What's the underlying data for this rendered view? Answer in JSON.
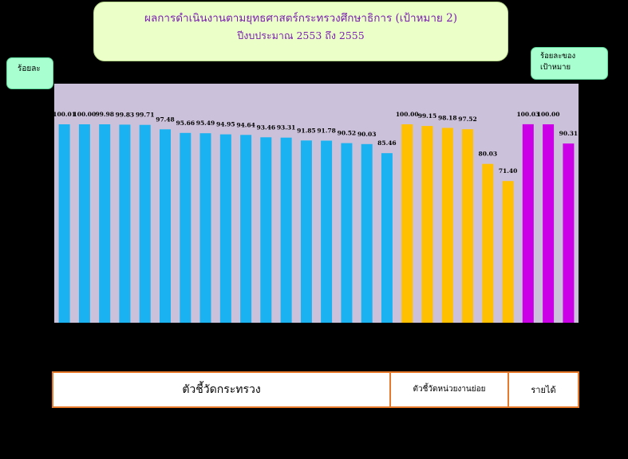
{
  "title": {
    "line1": "ผลการดำเนินงานตามยุทธศาสตร์กระทรวงศึกษาธิการ (เป้าหมาย 2)",
    "line2": "ปีงบประมาณ 2553 ถึง 2555"
  },
  "unit_label": "ร้อยละ",
  "legend_label": "ร้อยละของ\nเป้าหมาย",
  "bottom_table": {
    "cell1": "ตัวชี้วัดกระทรวง",
    "cell2": "ตัวชี้วัดหน่วยงานย่อย",
    "cell3": "รายได้"
  },
  "chart_data": {
    "type": "bar",
    "title": "",
    "ylim": [
      0,
      100
    ],
    "grid": false,
    "values": [
      100.01,
      100.0,
      99.98,
      99.83,
      99.71,
      97.48,
      95.66,
      95.49,
      94.95,
      94.64,
      93.46,
      93.31,
      91.85,
      91.78,
      90.52,
      90.03,
      85.46,
      100.0,
      99.15,
      98.18,
      97.52,
      80.03,
      71.4,
      100.03,
      100.0,
      90.31
    ],
    "data_labels": [
      "100.01",
      "100.00",
      "99.98",
      "99.83",
      "99.71",
      "97.48",
      "95.66",
      "95.49",
      "94.95",
      "94.64",
      "93.46",
      "93.31",
      "91.85",
      "91.78",
      "90.52",
      "90.03",
      "85.46",
      "100.00",
      "99.15",
      "98.18",
      "97.52",
      "80.03",
      "71.40",
      "100.03",
      "100.00",
      "90.31"
    ],
    "groups": [
      {
        "count": 17,
        "color": "#1ab2f0"
      },
      {
        "count": 6,
        "color": "#ffc000"
      },
      {
        "count": 3,
        "color": "#cc00e6"
      }
    ],
    "plot_background": "#ccc1da"
  }
}
